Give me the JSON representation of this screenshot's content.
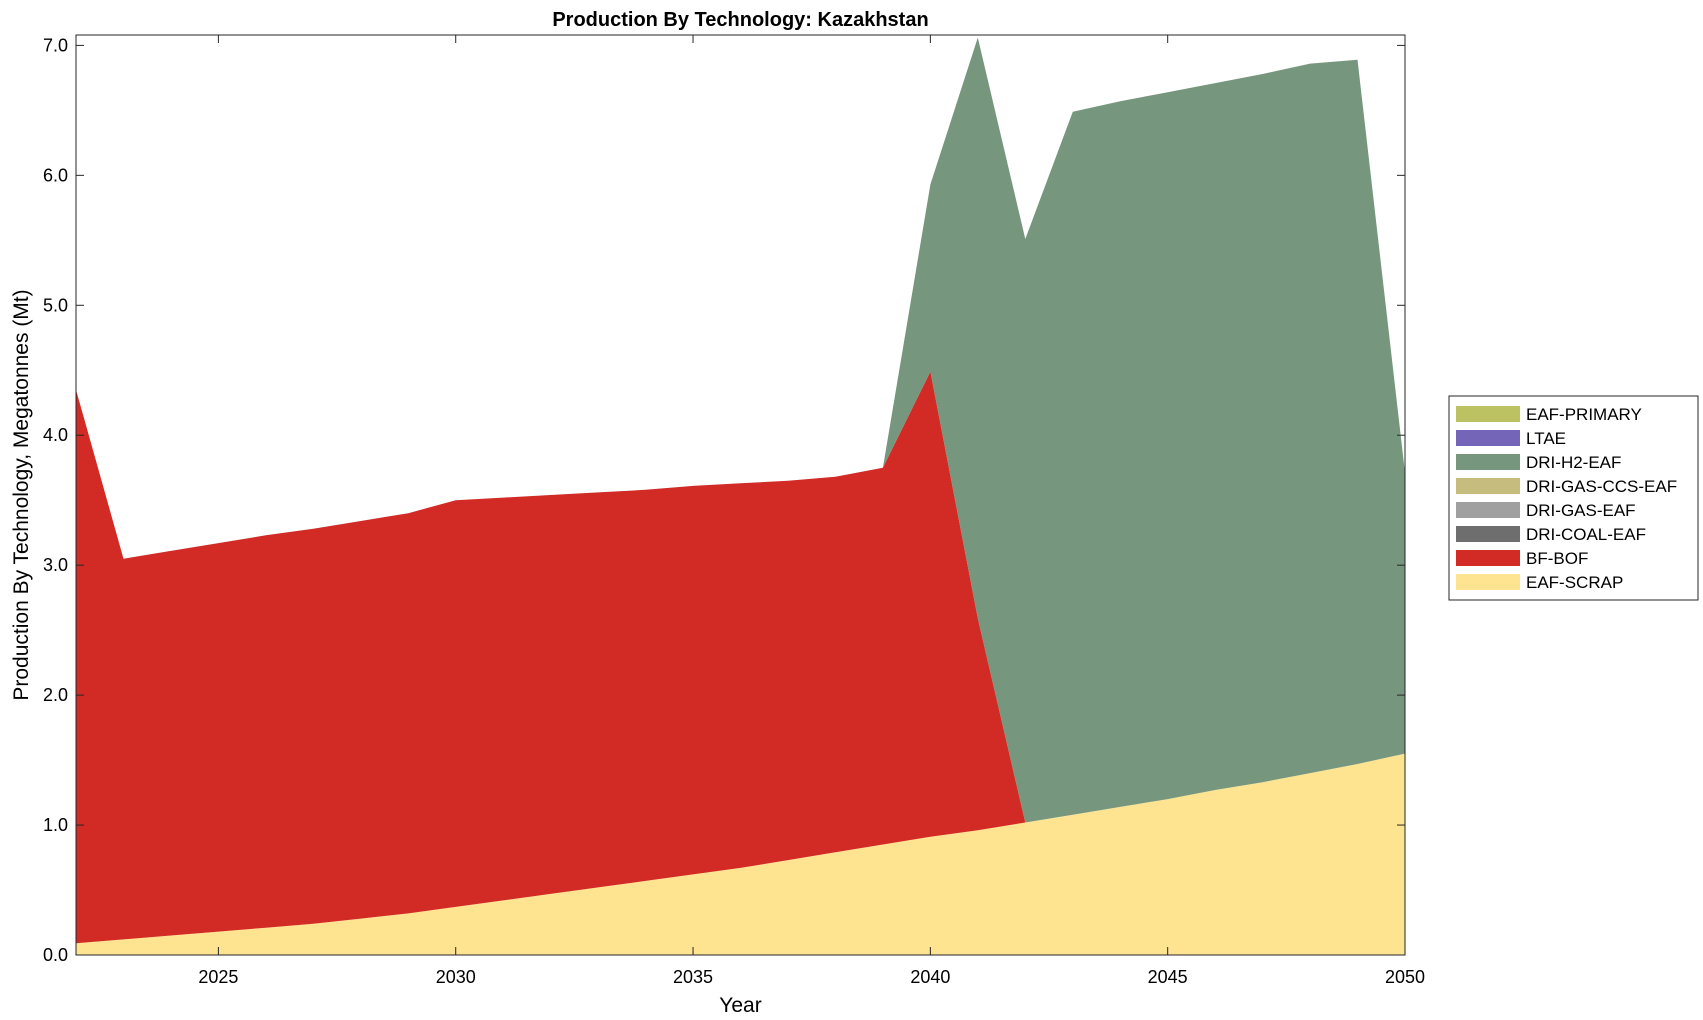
{
  "chart_data": {
    "type": "area",
    "stacked": true,
    "title": "Production By Technology: Kazakhstan",
    "xlabel": "Year",
    "ylabel": "Production By Technology, Megatonnes (Mt)",
    "xlim": [
      2022,
      2050
    ],
    "ylim": [
      0,
      7.08
    ],
    "xticks": [
      2025,
      2030,
      2035,
      2040,
      2045,
      2050
    ],
    "yticks": [
      0,
      1,
      2,
      3,
      4,
      5,
      6,
      7
    ],
    "ytick_labels": [
      "0.0",
      "1.0",
      "2.0",
      "3.0",
      "4.0",
      "5.0",
      "6.0",
      "7.0"
    ],
    "legend_position": "right",
    "legend_order": [
      "EAF-PRIMARY",
      "LTAE",
      "DRI-H2-EAF",
      "DRI-GAS-CCS-EAF",
      "DRI-GAS-EAF",
      "DRI-COAL-EAF",
      "BF-BOF",
      "EAF-SCRAP"
    ],
    "x": [
      2022,
      2023,
      2024,
      2025,
      2026,
      2027,
      2028,
      2029,
      2030,
      2031,
      2032,
      2033,
      2034,
      2035,
      2036,
      2037,
      2038,
      2039,
      2040,
      2041,
      2042,
      2043,
      2044,
      2045,
      2046,
      2047,
      2048,
      2049,
      2050
    ],
    "series": [
      {
        "name": "EAF-SCRAP",
        "color": "#FEE391",
        "values": [
          0.09,
          0.12,
          0.15,
          0.18,
          0.21,
          0.24,
          0.28,
          0.32,
          0.37,
          0.42,
          0.47,
          0.52,
          0.57,
          0.62,
          0.67,
          0.73,
          0.79,
          0.85,
          0.91,
          0.96,
          1.02,
          1.08,
          1.14,
          1.2,
          1.27,
          1.33,
          1.4,
          1.47,
          1.55
        ]
      },
      {
        "name": "BF-BOF",
        "color": "#D22A24",
        "values": [
          4.26,
          2.93,
          2.96,
          2.99,
          3.02,
          3.04,
          3.06,
          3.08,
          3.13,
          3.1,
          3.07,
          3.04,
          3.01,
          2.99,
          2.96,
          2.92,
          2.89,
          2.9,
          3.58,
          1.63,
          0,
          0,
          0,
          0,
          0,
          0,
          0,
          0,
          0
        ]
      },
      {
        "name": "DRI-COAL-EAF",
        "color": "#6E6E6E",
        "values": [
          0,
          0,
          0,
          0,
          0,
          0,
          0,
          0,
          0,
          0,
          0,
          0,
          0,
          0,
          0,
          0,
          0,
          0,
          0,
          0,
          0,
          0,
          0,
          0,
          0,
          0,
          0,
          0,
          0
        ]
      },
      {
        "name": "DRI-GAS-EAF",
        "color": "#A0A0A0",
        "values": [
          0,
          0,
          0,
          0,
          0,
          0,
          0,
          0,
          0,
          0,
          0,
          0,
          0,
          0,
          0,
          0,
          0,
          0,
          0,
          0,
          0,
          0,
          0,
          0,
          0,
          0,
          0,
          0,
          0
        ]
      },
      {
        "name": "DRI-GAS-CCS-EAF",
        "color": "#C5BC7E",
        "values": [
          0,
          0,
          0,
          0,
          0,
          0,
          0,
          0,
          0,
          0,
          0,
          0,
          0,
          0,
          0,
          0,
          0,
          0,
          0,
          0,
          0,
          0,
          0,
          0,
          0,
          0,
          0,
          0,
          0
        ]
      },
      {
        "name": "DRI-H2-EAF",
        "color": "#76977E",
        "values": [
          0,
          0,
          0,
          0,
          0,
          0,
          0,
          0,
          0,
          0,
          0,
          0,
          0,
          0,
          0,
          0,
          0,
          0,
          1.44,
          4.47,
          4.49,
          5.41,
          5.43,
          5.44,
          5.44,
          5.45,
          5.46,
          5.42,
          2.16
        ]
      },
      {
        "name": "LTAE",
        "color": "#7565B8",
        "values": [
          0,
          0,
          0,
          0,
          0,
          0,
          0,
          0,
          0,
          0,
          0,
          0,
          0,
          0,
          0,
          0,
          0,
          0,
          0,
          0,
          0,
          0,
          0,
          0,
          0,
          0,
          0,
          0,
          0
        ]
      },
      {
        "name": "EAF-PRIMARY",
        "color": "#BCC262",
        "values": [
          0,
          0,
          0,
          0,
          0,
          0,
          0,
          0,
          0,
          0,
          0,
          0,
          0,
          0,
          0,
          0,
          0,
          0,
          0,
          0,
          0,
          0,
          0,
          0,
          0,
          0,
          0,
          0,
          0
        ]
      }
    ]
  }
}
